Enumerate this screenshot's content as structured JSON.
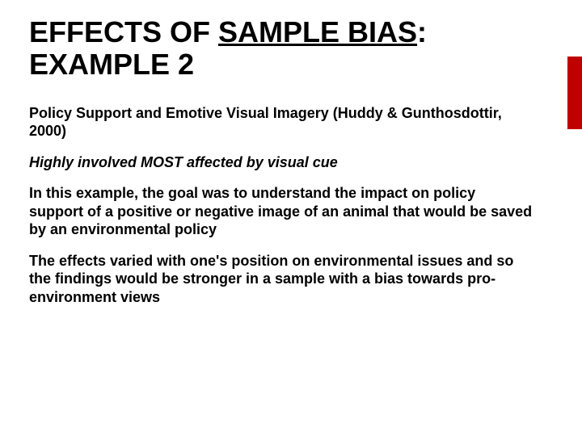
{
  "slide": {
    "title_pre": "EFFECTS OF ",
    "title_underlined": "SAMPLE BIAS",
    "title_post": ": EXAMPLE 2",
    "title_fontsize_pt": 36,
    "title_color": "#000000",
    "accent_bar_color": "#c00000",
    "background_color": "#ffffff",
    "paragraphs": [
      "Policy Support and Emotive Visual Imagery (Huddy & Gunthosdottir, 2000)",
      "Highly involved MOST affected  by visual cue",
      "In this example, the goal was to understand the impact on policy support of a positive or negative image of an animal that would be saved by an environmental policy",
      "The effects varied with one's position on environmental issues and so the findings would be stronger in a sample with a bias towards pro-environment views"
    ],
    "paragraph_styles": [
      {
        "italic": false
      },
      {
        "italic": true
      },
      {
        "italic": false
      },
      {
        "italic": false
      }
    ],
    "body_fontsize_pt": 18,
    "body_font_weight": "bold",
    "body_color": "#000000"
  }
}
